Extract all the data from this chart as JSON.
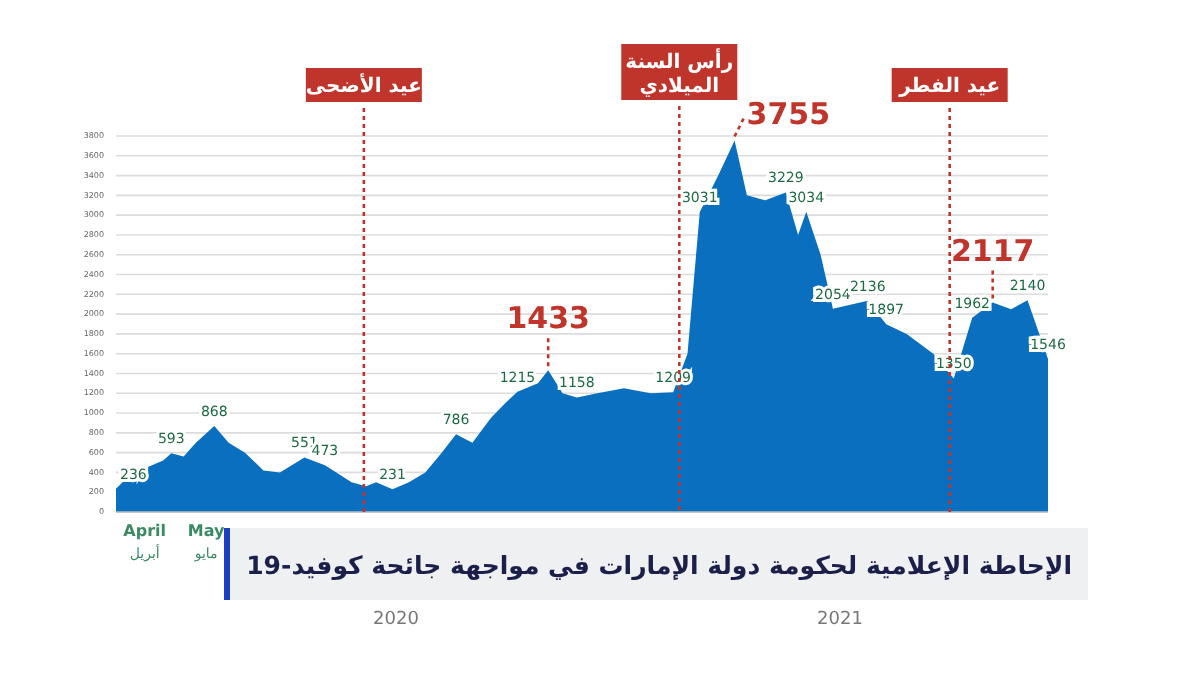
{
  "chart_data": {
    "type": "area",
    "title": "الإحاطة الإعلامية لحكومة دولة الإمارات في مواجهة جائحة كوفيد-19",
    "x": [
      "2020-04-01",
      "2020-04-08",
      "2020-04-16",
      "2020-04-24",
      "2020-04-28",
      "2020-05-04",
      "2020-05-10",
      "2020-05-19",
      "2020-05-26",
      "2020-06-03",
      "2020-06-12",
      "2020-06-20",
      "2020-07-02",
      "2020-07-12",
      "2020-07-25",
      "2020-08-01",
      "2020-08-06",
      "2020-08-14",
      "2020-08-22",
      "2020-08-30",
      "2020-09-07",
      "2020-09-14",
      "2020-09-22",
      "2020-10-01",
      "2020-10-08",
      "2020-10-14",
      "2020-10-24",
      "2020-10-29",
      "2020-11-05",
      "2020-11-12",
      "2020-11-22",
      "2020-12-05",
      "2020-12-18",
      "2020-12-29",
      "2021-01-05",
      "2021-01-11",
      "2021-01-20",
      "2021-01-28",
      "2021-02-03",
      "2021-02-12",
      "2021-02-22",
      "2021-02-28",
      "2021-03-04",
      "2021-03-11",
      "2021-03-17",
      "2021-04-03",
      "2021-04-12",
      "2021-04-22",
      "2021-05-05",
      "2021-05-15",
      "2021-05-24",
      "2021-06-03",
      "2021-06-12",
      "2021-06-20",
      "2021-06-30"
    ],
    "series": [
      {
        "color": "#0b6fc0",
        "values": [
          236,
          380,
          450,
          520,
          593,
          560,
          700,
          868,
          700,
          600,
          420,
          400,
          551,
          473,
          300,
          260,
          300,
          231,
          300,
          400,
          600,
          786,
          700,
          950,
          1100,
          1215,
          1300,
          1433,
          1200,
          1158,
          1200,
          1250,
          1200,
          1209,
          1600,
          3031,
          3400,
          3755,
          3200,
          3150,
          3229,
          2800,
          3034,
          2600,
          2054,
          2136,
          1897,
          1800,
          1600,
          1350,
          1962,
          2117,
          2050,
          2140,
          1546
        ],
        "value_labels": [
          "236",
          null,
          null,
          null,
          "593",
          null,
          null,
          "868",
          null,
          null,
          null,
          null,
          "551",
          "473",
          null,
          null,
          null,
          "231",
          null,
          null,
          null,
          "786",
          null,
          null,
          null,
          "1215",
          null,
          null,
          null,
          "1158",
          null,
          null,
          null,
          "1209",
          null,
          "3031",
          null,
          null,
          null,
          null,
          "3229",
          null,
          "3034",
          null,
          "2054",
          "2136",
          "1897",
          null,
          null,
          "1350",
          "1962",
          null,
          null,
          "2140",
          "1546"
        ]
      }
    ],
    "xlim": [
      "2020-04-01",
      "2021-06-30"
    ],
    "xticks": [
      {
        "value": "2020-04-15",
        "label": "April\nأبريل"
      },
      {
        "value": "2020-05-15",
        "label": "May\nمايو"
      }
    ],
    "ylim": [
      0,
      3800
    ],
    "yticks": [
      0,
      200,
      400,
      600,
      800,
      1000,
      1200,
      1400,
      1600,
      1800,
      2000,
      2200,
      2400,
      2600,
      2800,
      3000,
      3200,
      3400,
      3600,
      3800
    ],
    "grid": "y",
    "ref_lines": [
      {
        "axis": "x",
        "value": "2020-07-31",
        "label": "عيد الأضحى",
        "color": "#c0352b",
        "line_style": "dotted"
      },
      {
        "axis": "x",
        "value": "2021-01-01",
        "label": "رأس السنة\nالميلادي",
        "color": "#c0352b",
        "line_style": "dotted"
      },
      {
        "axis": "x",
        "value": "2021-05-13",
        "label": "عيد الفطر",
        "color": "#c0352b",
        "line_style": "dotted"
      }
    ],
    "annotations": [
      {
        "text": "1433",
        "x": "2020-10-29",
        "y": 1433
      },
      {
        "text": "3755",
        "x": "2021-01-28",
        "y": 3755
      },
      {
        "text": "2117",
        "x": "2021-06-03",
        "y": 2117
      },
      "2020",
      "2021"
    ]
  }
}
